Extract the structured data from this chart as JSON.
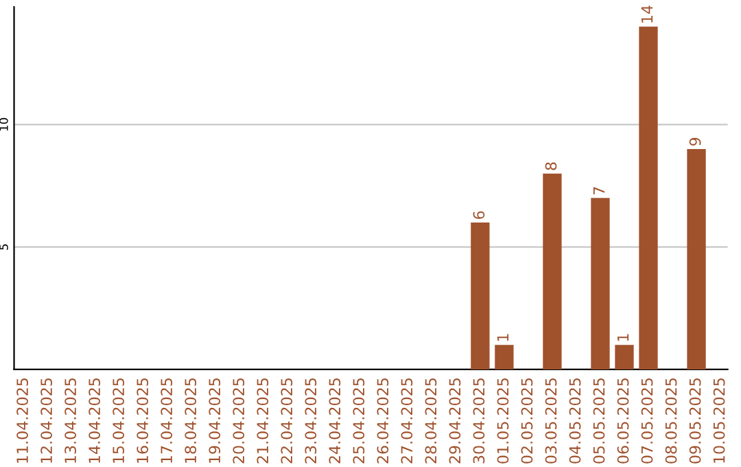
{
  "chart_data": {
    "type": "bar",
    "categories": [
      "11.04.2025",
      "12.04.2025",
      "13.04.2025",
      "14.04.2025",
      "15.04.2025",
      "16.04.2025",
      "17.04.2025",
      "18.04.2025",
      "19.04.2025",
      "20.04.2025",
      "21.04.2025",
      "22.04.2025",
      "23.04.2025",
      "24.04.2025",
      "25.04.2025",
      "26.04.2025",
      "27.04.2025",
      "28.04.2025",
      "29.04.2025",
      "30.04.2025",
      "01.05.2025",
      "02.05.2025",
      "03.05.2025",
      "04.05.2025",
      "05.05.2025",
      "06.05.2025",
      "07.05.2025",
      "08.05.2025",
      "09.05.2025",
      "10.05.2025"
    ],
    "values": [
      0,
      0,
      0,
      0,
      0,
      0,
      0,
      0,
      0,
      0,
      0,
      0,
      0,
      0,
      0,
      0,
      0,
      0,
      0,
      6,
      1,
      0,
      8,
      0,
      7,
      1,
      14,
      0,
      9,
      0
    ],
    "value_labels": [
      null,
      null,
      null,
      null,
      null,
      null,
      null,
      null,
      null,
      null,
      null,
      null,
      null,
      null,
      null,
      null,
      null,
      null,
      null,
      "6",
      "1",
      null,
      "8",
      null,
      "7",
      "1",
      "14",
      null,
      "9",
      null
    ],
    "color": "#a0522d",
    "ylim": [
      0,
      14.8
    ],
    "yticks": [
      5,
      10
    ],
    "grid": "y"
  }
}
